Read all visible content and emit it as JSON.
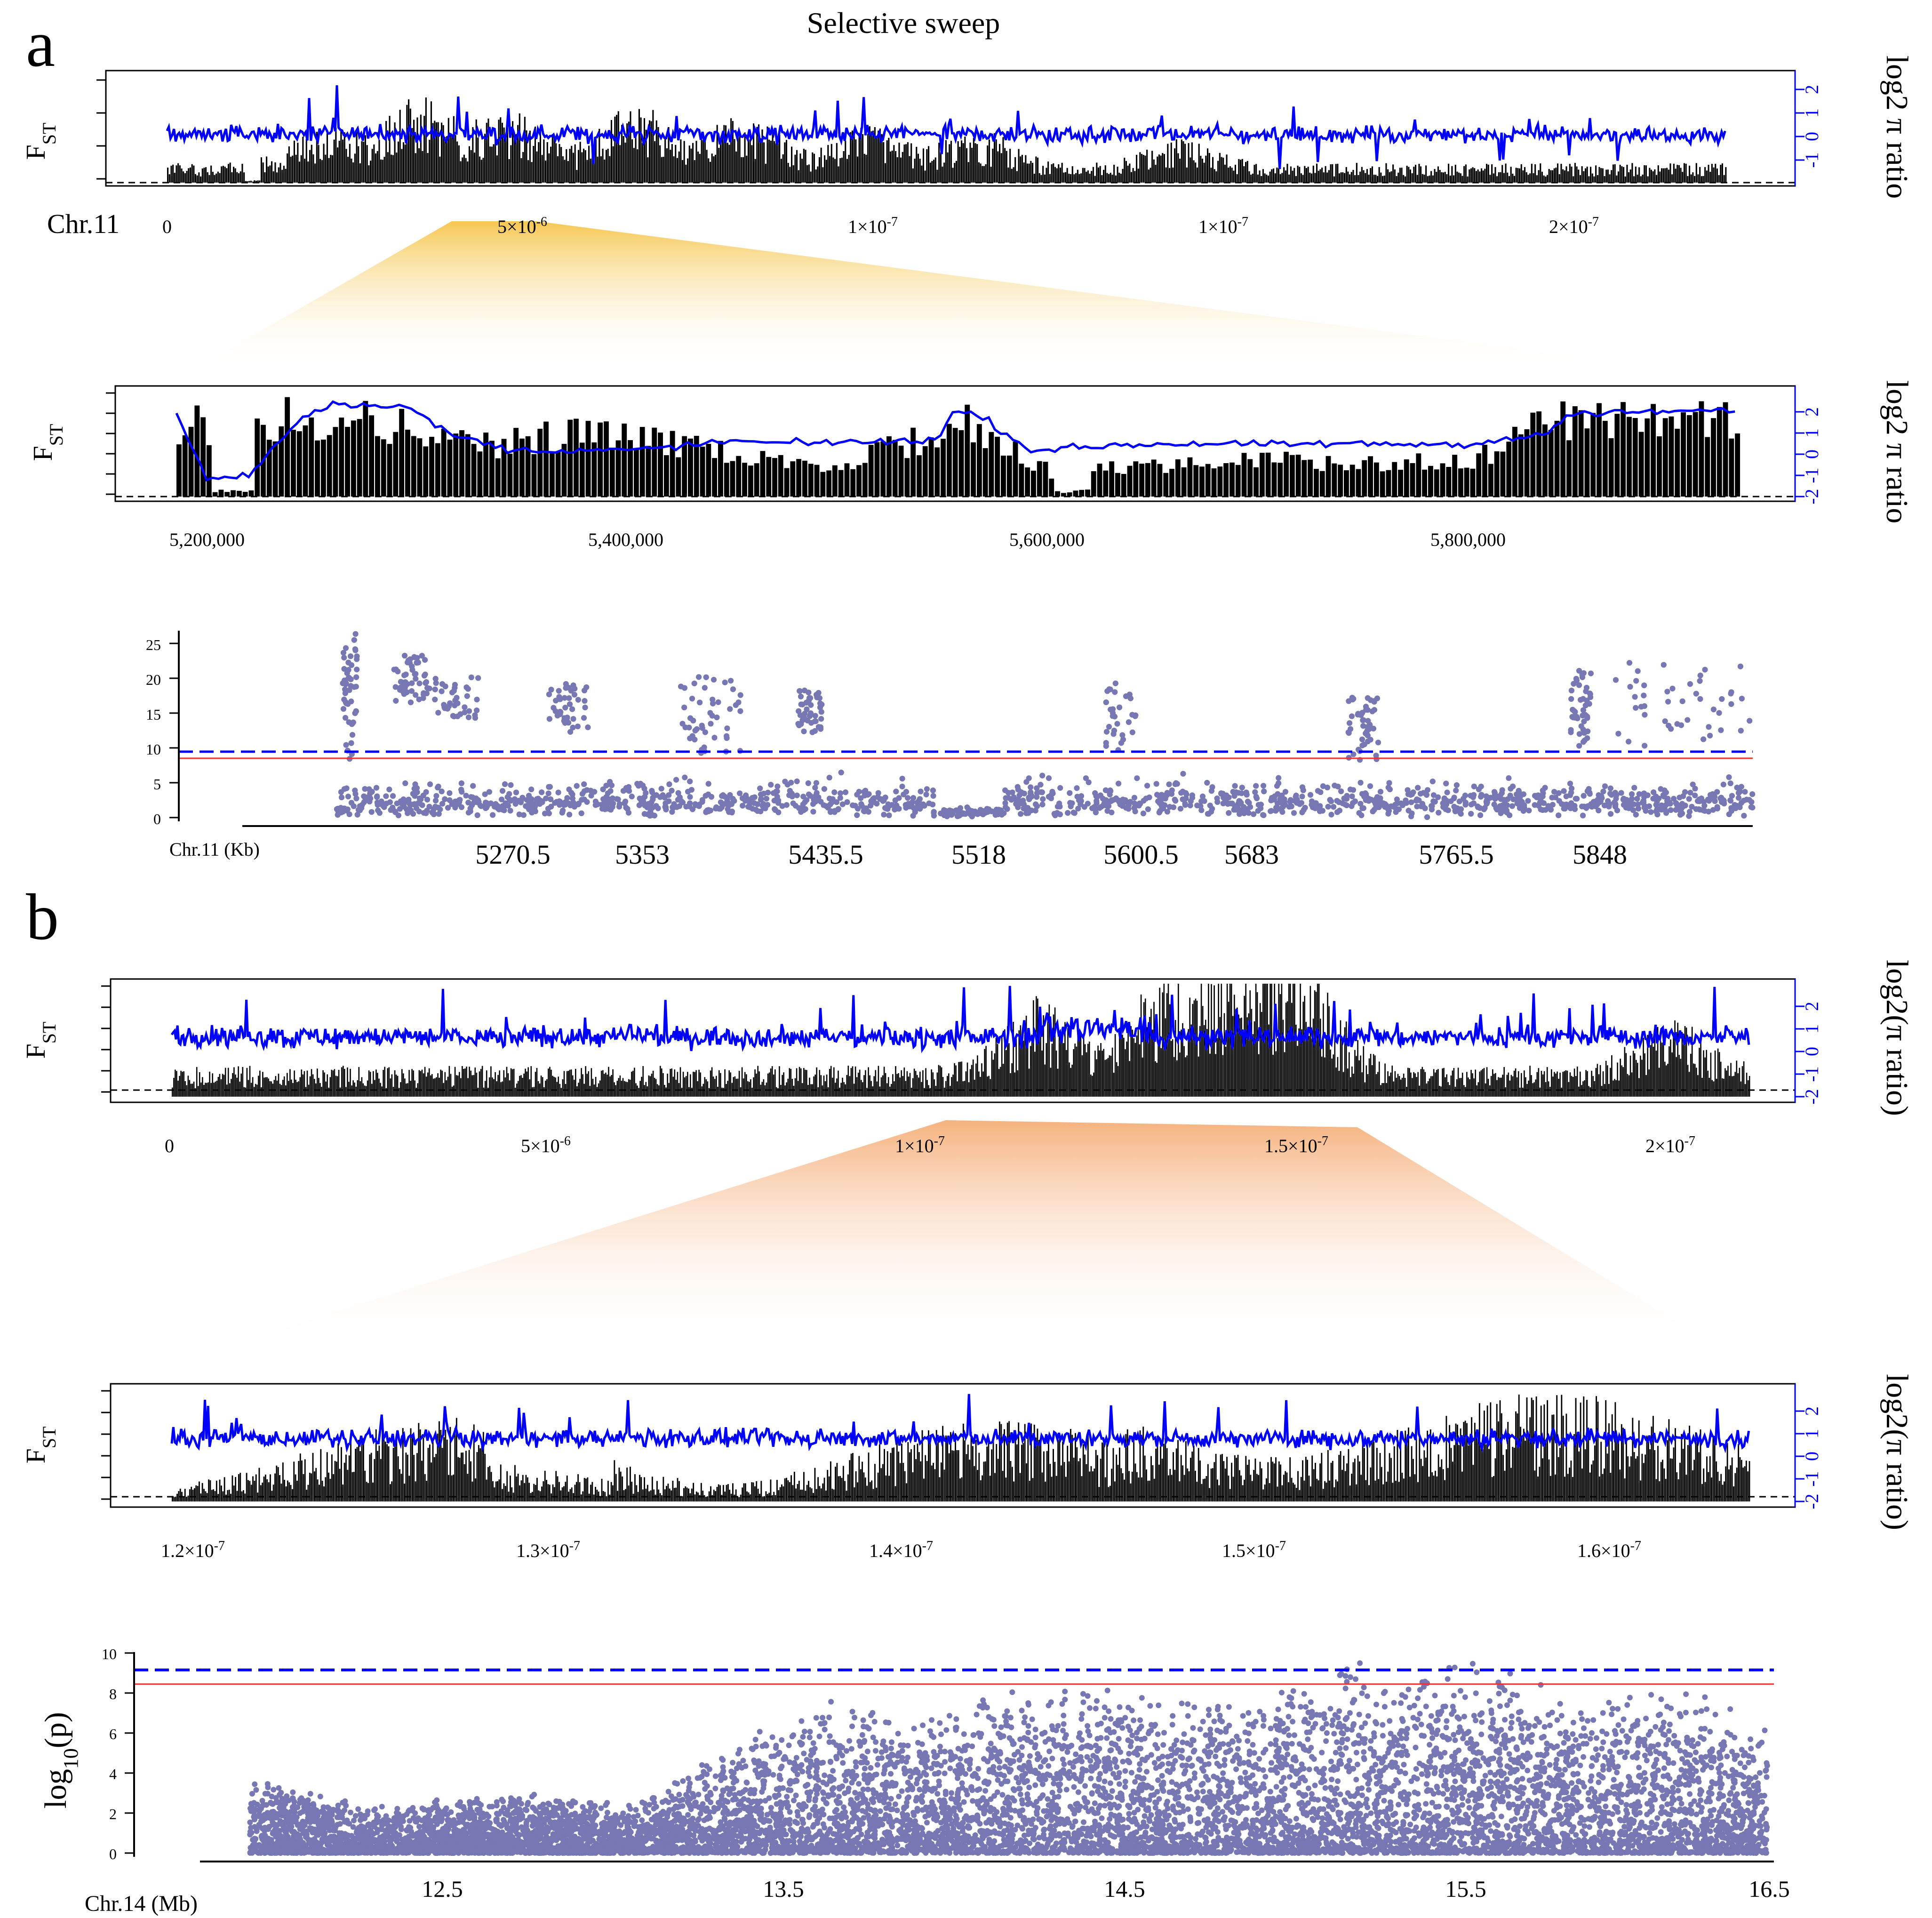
{
  "figure": {
    "title": "Selective sweep",
    "panel_a_label": "a",
    "panel_b_label": "b"
  },
  "colors": {
    "fst_bars": "#000000",
    "pi_line": "#0000ff",
    "scatter_points": "#7777b4",
    "threshold_blue": "#0000ff",
    "threshold_red": "#ff2a2a",
    "zoom_a": "#f6c752",
    "zoom_b": "#f6b27e"
  },
  "chart_data": [
    {
      "id": "a1",
      "type": "bar+line",
      "title": "Selective sweep",
      "ylabel": "FST",
      "ylabel_right": "log2 π ratio",
      "chrom_label": "Chr.11",
      "x_tick_labels": [
        "0",
        "5×10^-6",
        "1×10^-7",
        "1×10^-7",
        "2×10^-7"
      ],
      "right_ticks": [
        "-1",
        "0",
        "1",
        "2"
      ],
      "n_bins": 900,
      "series": [
        {
          "name": "FST",
          "style": "bars",
          "base_height": 0.16,
          "peaks": [
            [
              0.1,
              0.28
            ],
            [
              0.16,
              0.55
            ],
            [
              0.22,
              0.45
            ],
            [
              0.3,
              0.5
            ],
            [
              0.37,
              0.4
            ],
            [
              0.45,
              0.3
            ],
            [
              0.52,
              0.28
            ],
            [
              0.65,
              0.2
            ]
          ]
        },
        {
          "name": "log2 pi ratio",
          "style": "line",
          "ylim": [
            -1.8,
            2.5
          ],
          "baseline": 0.0
        }
      ]
    },
    {
      "id": "a2",
      "type": "bar+line",
      "ylabel": "FST",
      "ylabel_right": "log2 π ratio",
      "x_tick_labels": [
        "5,200,000",
        "5,400,000",
        "5,600,000",
        "5,800,000"
      ],
      "xlim": [
        5170000,
        5940000
      ],
      "right_ticks": [
        "-2",
        "-1",
        "0",
        "1",
        "2"
      ],
      "n_bins": 260,
      "series": [
        {
          "name": "FST",
          "style": "bars",
          "segments": [
            [
              5180000,
              0.85
            ],
            [
              5230000,
              0.95
            ],
            [
              5280000,
              0.9
            ],
            [
              5320000,
              0.6
            ],
            [
              5370000,
              0.8
            ],
            [
              5430000,
              0.6
            ],
            [
              5490000,
              0.3
            ],
            [
              5560000,
              0.9
            ],
            [
              5600000,
              0.3
            ],
            [
              5680000,
              0.45
            ],
            [
              5800000,
              0.4
            ],
            [
              5840000,
              0.95
            ],
            [
              5920000,
              0.9
            ]
          ]
        },
        {
          "name": "log2 pi ratio",
          "style": "line",
          "ylim": [
            -2.4,
            2.6
          ],
          "knots": [
            [
              5180000,
              1.8
            ],
            [
              5195000,
              -1.5
            ],
            [
              5215000,
              -1.2
            ],
            [
              5240000,
              1.6
            ],
            [
              5255000,
              2.3
            ],
            [
              5290000,
              2.2
            ],
            [
              5310000,
              0.9
            ],
            [
              5340000,
              0.0
            ],
            [
              5400000,
              0.0
            ],
            [
              5440000,
              0.4
            ],
            [
              5500000,
              0.4
            ],
            [
              5545000,
              0.5
            ],
            [
              5555000,
              2.0
            ],
            [
              5570000,
              1.5
            ],
            [
              5590000,
              0.0
            ],
            [
              5640000,
              0.3
            ],
            [
              5700000,
              0.3
            ],
            [
              5800000,
              0.3
            ],
            [
              5840000,
              0.8
            ],
            [
              5850000,
              1.8
            ],
            [
              5930000,
              2.0
            ]
          ]
        }
      ]
    },
    {
      "id": "a3",
      "type": "scatter",
      "chrom_label": "Chr.11 (Kb)",
      "x_tick_labels": [
        "5270.5",
        "5353",
        "5435.5",
        "5518",
        "5600.5",
        "5683",
        "5765.5",
        "5848"
      ],
      "xlim": [
        5188,
        5930
      ],
      "ylim": [
        0,
        27
      ],
      "y_ticks": [
        0,
        5,
        10,
        15,
        20,
        25
      ],
      "thresholds": {
        "blue_dashed": 9.2,
        "red_solid": 8.5
      },
      "n_points": 5200,
      "clusters": [
        [
          5233,
          5240,
          8,
          26
        ],
        [
          5258,
          5275,
          16,
          23
        ],
        [
          5275,
          5300,
          14,
          20
        ],
        [
          5335,
          5355,
          12,
          19
        ],
        [
          5400,
          5430,
          9,
          20
        ],
        [
          5458,
          5470,
          12,
          18
        ],
        [
          5610,
          5625,
          9,
          19
        ],
        [
          5730,
          5745,
          8,
          17
        ],
        [
          5840,
          5850,
          10,
          21
        ],
        [
          5860,
          5930,
          10,
          22
        ]
      ]
    },
    {
      "id": "b1",
      "type": "bar+line",
      "ylabel": "FST",
      "ylabel_right": "log2(π ratio)",
      "x_tick_labels": [
        "0",
        "5×10^-6",
        "1×10^-7",
        "1.5×10^-7",
        "2×10^-7"
      ],
      "right_ticks": [
        "-2",
        "-1",
        "0",
        "1",
        "2"
      ],
      "n_bins": 1100,
      "series": [
        {
          "name": "FST",
          "style": "bars",
          "base_height": 0.25,
          "peaks": [
            [
              0.55,
              0.6
            ],
            [
              0.63,
              0.75
            ],
            [
              0.68,
              0.8
            ],
            [
              0.72,
              0.7
            ],
            [
              0.95,
              0.4
            ]
          ]
        },
        {
          "name": "log2(pi ratio)",
          "style": "line",
          "ylim": [
            -2.6,
            2.8
          ],
          "baseline": 0.0
        }
      ]
    },
    {
      "id": "b2",
      "type": "bar+line",
      "ylabel": "FST",
      "ylabel_right": "log2(π ratio)",
      "x_tick_labels": [
        "1.2×10^-7",
        "1.3×10^-7",
        "1.4×10^-7",
        "1.5×10^-7",
        "1.6×10^-7"
      ],
      "xlim": [
        11.75,
        16.55
      ],
      "right_ticks": [
        "-2",
        "-1",
        "0",
        "1",
        "2"
      ],
      "n_bins": 1000,
      "series": [
        {
          "name": "FST",
          "style": "bars",
          "base_height": 0.3
        },
        {
          "name": "log2(pi ratio)",
          "style": "line",
          "ylim": [
            -2.6,
            2.8
          ],
          "baseline": 0.0
        }
      ]
    },
    {
      "id": "b3",
      "type": "scatter",
      "ylabel": "log10(p)",
      "chrom_label": "Chr.14 (Mb)",
      "x_tick_labels": [
        "12.5",
        "13.5",
        "14.5",
        "15.5",
        "16.5"
      ],
      "xlim": [
        11.8,
        16.52
      ],
      "ylim": [
        0,
        10
      ],
      "y_ticks": [
        0,
        2,
        4,
        6,
        8,
        10
      ],
      "thresholds": {
        "blue_dashed": 9.1,
        "red_solid": 8.4
      },
      "n_points": 9000,
      "density_profile": [
        [
          11.95,
          2.5
        ],
        [
          12.3,
          1.5
        ],
        [
          12.8,
          2.0
        ],
        [
          13.1,
          1.5
        ],
        [
          13.4,
          3.5
        ],
        [
          13.7,
          5.0
        ],
        [
          14.0,
          4.5
        ],
        [
          14.3,
          5.5
        ],
        [
          14.6,
          5.5
        ],
        [
          14.9,
          5.0
        ],
        [
          15.2,
          6.0
        ],
        [
          15.5,
          6.5
        ],
        [
          15.9,
          5.0
        ],
        [
          16.2,
          5.5
        ],
        [
          16.5,
          4.0
        ]
      ]
    }
  ]
}
